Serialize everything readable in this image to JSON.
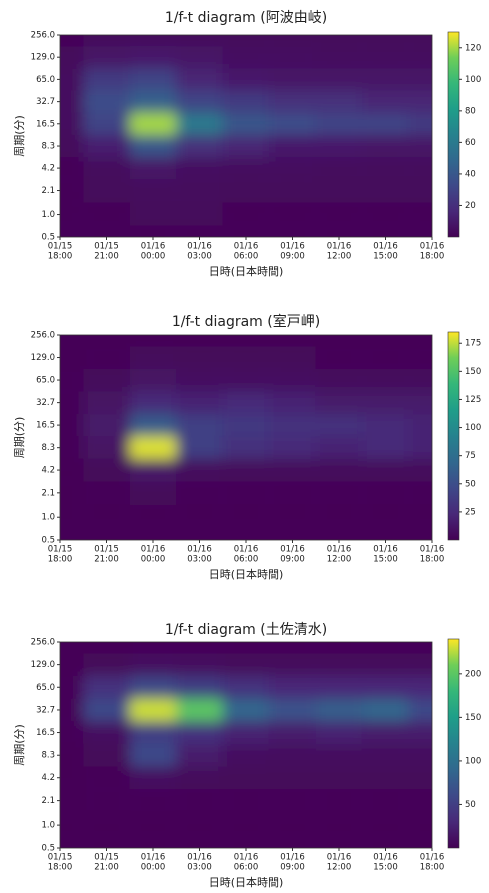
{
  "chart_data": [
    {
      "type": "heatmap",
      "title": "1/f-t diagram (阿波由岐)",
      "xlabel": "日時(日本時間)",
      "ylabel": "周期(分)",
      "colormap": "viridis",
      "yscale": "log",
      "ylim": [
        0.5,
        256
      ],
      "x": [
        {
          "date": "01/15",
          "time": "18:00"
        },
        {
          "date": "01/15",
          "time": "21:00"
        },
        {
          "date": "01/16",
          "time": "00:00"
        },
        {
          "date": "01/16",
          "time": "03:00"
        },
        {
          "date": "01/16",
          "time": "06:00"
        },
        {
          "date": "01/16",
          "time": "09:00"
        },
        {
          "date": "01/16",
          "time": "12:00"
        },
        {
          "date": "01/16",
          "time": "15:00"
        },
        {
          "date": "01/16",
          "time": "18:00"
        }
      ],
      "y": [
        0.5,
        1,
        2.1,
        4.2,
        8.3,
        16.5,
        32.7,
        65,
        129,
        256
      ],
      "yticks": [
        0.5,
        {
          "value": 1,
          "label": "1.0"
        },
        2.1,
        4.2,
        8.3,
        16.5,
        32.7,
        {
          "value": 65,
          "label": "65.0"
        },
        {
          "value": 129,
          "label": "129.0"
        },
        {
          "value": 256,
          "label": "256.0"
        }
      ],
      "values": [
        [
          2,
          2,
          2,
          2,
          2,
          2,
          2,
          2,
          2
        ],
        [
          2,
          2,
          3,
          3,
          2,
          2,
          2,
          2,
          2
        ],
        [
          2,
          3,
          4,
          4,
          3,
          3,
          3,
          3,
          3
        ],
        [
          2,
          4,
          8,
          6,
          5,
          5,
          4,
          4,
          4
        ],
        [
          3,
          12,
          40,
          20,
          15,
          10,
          10,
          8,
          8
        ],
        [
          5,
          30,
          120,
          60,
          40,
          35,
          30,
          30,
          25
        ],
        [
          5,
          35,
          45,
          30,
          25,
          20,
          20,
          15,
          15
        ],
        [
          5,
          25,
          30,
          15,
          10,
          8,
          8,
          8,
          8
        ],
        [
          3,
          8,
          10,
          8,
          6,
          6,
          5,
          5,
          5
        ],
        [
          2,
          3,
          3,
          3,
          3,
          3,
          3,
          3,
          3
        ]
      ],
      "clim": [
        0,
        130
      ],
      "cticks": [
        20,
        40,
        60,
        80,
        100,
        120
      ]
    },
    {
      "type": "heatmap",
      "title": "1/f-t diagram (室戸岬)",
      "xlabel": "日時(日本時間)",
      "ylabel": "周期(分)",
      "colormap": "viridis",
      "yscale": "log",
      "ylim": [
        0.5,
        256
      ],
      "x": [
        {
          "date": "01/15",
          "time": "18:00"
        },
        {
          "date": "01/15",
          "time": "21:00"
        },
        {
          "date": "01/16",
          "time": "00:00"
        },
        {
          "date": "01/16",
          "time": "03:00"
        },
        {
          "date": "01/16",
          "time": "06:00"
        },
        {
          "date": "01/16",
          "time": "09:00"
        },
        {
          "date": "01/16",
          "time": "12:00"
        },
        {
          "date": "01/16",
          "time": "15:00"
        },
        {
          "date": "01/16",
          "time": "18:00"
        }
      ],
      "y": [
        0.5,
        1,
        2.1,
        4.2,
        8.3,
        16.5,
        32.7,
        65,
        129,
        256
      ],
      "yticks": [
        0.5,
        {
          "value": 1,
          "label": "1.0"
        },
        2.1,
        4.2,
        8.3,
        16.5,
        32.7,
        {
          "value": 65,
          "label": "65.0"
        },
        {
          "value": 129,
          "label": "129.0"
        },
        {
          "value": 256,
          "label": "256.0"
        }
      ],
      "values": [
        [
          2,
          2,
          2,
          2,
          2,
          2,
          2,
          2,
          2
        ],
        [
          2,
          2,
          2,
          2,
          2,
          2,
          2,
          2,
          2
        ],
        [
          2,
          3,
          4,
          3,
          3,
          3,
          3,
          3,
          3
        ],
        [
          2,
          4,
          12,
          6,
          5,
          5,
          5,
          5,
          5
        ],
        [
          3,
          10,
          180,
          40,
          30,
          25,
          20,
          25,
          20
        ],
        [
          3,
          15,
          60,
          40,
          35,
          30,
          30,
          25,
          20
        ],
        [
          3,
          10,
          25,
          20,
          25,
          20,
          15,
          15,
          15
        ],
        [
          3,
          5,
          10,
          8,
          8,
          8,
          6,
          6,
          6
        ],
        [
          2,
          3,
          5,
          4,
          4,
          4,
          3,
          3,
          3
        ],
        [
          2,
          2,
          2,
          2,
          2,
          2,
          2,
          2,
          2
        ]
      ],
      "clim": [
        0,
        185
      ],
      "cticks": [
        25,
        50,
        75,
        100,
        125,
        150,
        175
      ]
    },
    {
      "type": "heatmap",
      "title": "1/f-t diagram (土佐清水)",
      "xlabel": "日時(日本時間)",
      "ylabel": "周期(分)",
      "colormap": "viridis",
      "yscale": "log",
      "ylim": [
        0.5,
        256
      ],
      "x": [
        {
          "date": "01/15",
          "time": "18:00"
        },
        {
          "date": "01/15",
          "time": "21:00"
        },
        {
          "date": "01/16",
          "time": "00:00"
        },
        {
          "date": "01/16",
          "time": "03:00"
        },
        {
          "date": "01/16",
          "time": "06:00"
        },
        {
          "date": "01/16",
          "time": "09:00"
        },
        {
          "date": "01/16",
          "time": "12:00"
        },
        {
          "date": "01/16",
          "time": "15:00"
        },
        {
          "date": "01/16",
          "time": "18:00"
        }
      ],
      "y": [
        0.5,
        1,
        2.1,
        4.2,
        8.3,
        16.5,
        32.7,
        65,
        129,
        256
      ],
      "yticks": [
        0.5,
        {
          "value": 1,
          "label": "1.0"
        },
        2.1,
        4.2,
        8.3,
        16.5,
        32.7,
        {
          "value": 65,
          "label": "65.0"
        },
        {
          "value": 129,
          "label": "129.0"
        },
        {
          "value": 256,
          "label": "256.0"
        }
      ],
      "values": [
        [
          2,
          2,
          2,
          2,
          2,
          2,
          2,
          2,
          2
        ],
        [
          2,
          2,
          2,
          2,
          2,
          2,
          2,
          2,
          2
        ],
        [
          2,
          3,
          4,
          3,
          3,
          3,
          3,
          3,
          3
        ],
        [
          2,
          4,
          10,
          6,
          5,
          5,
          5,
          5,
          5
        ],
        [
          2,
          5,
          60,
          20,
          10,
          8,
          8,
          8,
          8
        ],
        [
          3,
          10,
          50,
          40,
          25,
          20,
          25,
          20,
          20
        ],
        [
          3,
          60,
          230,
          200,
          90,
          70,
          80,
          90,
          60
        ],
        [
          3,
          40,
          60,
          50,
          40,
          30,
          30,
          30,
          30
        ],
        [
          2,
          5,
          10,
          8,
          6,
          6,
          6,
          6,
          6
        ],
        [
          2,
          2,
          3,
          3,
          3,
          3,
          3,
          3,
          3
        ]
      ],
      "clim": [
        0,
        240
      ],
      "cticks": [
        50,
        100,
        150,
        200
      ]
    }
  ]
}
